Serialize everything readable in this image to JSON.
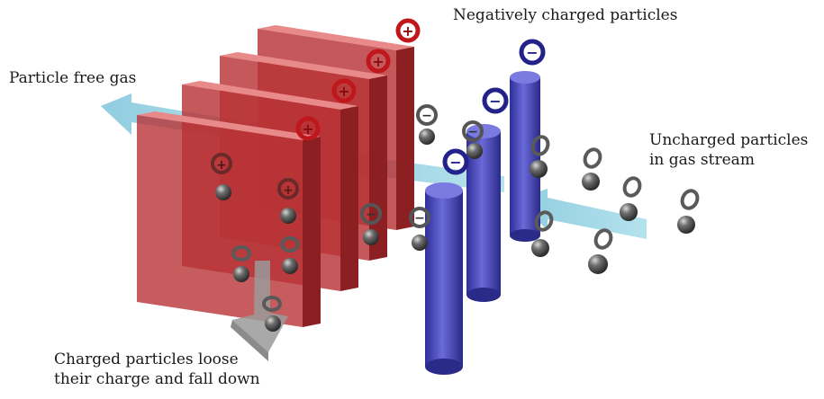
{
  "labels": {
    "negatively_charged": "Negatively charged particles",
    "particle_free_gas": "Particle free gas",
    "uncharged_line1": "Uncharged particles",
    "uncharged_line2": "in gas stream",
    "fall_line1": "Charged particles loose",
    "fall_line2": "their charge and fall down"
  },
  "symbols": {
    "positive": "+",
    "negative": "−"
  },
  "colors": {
    "plate": "#c0393b",
    "electrode": "#4b4bc4",
    "gas_arrow": "#8ccfe0",
    "fall_arrow": "#9a9a9a",
    "particle": "#5a5a5a",
    "positive_ring": "#c0171c",
    "negative_ring": "#22228a"
  }
}
